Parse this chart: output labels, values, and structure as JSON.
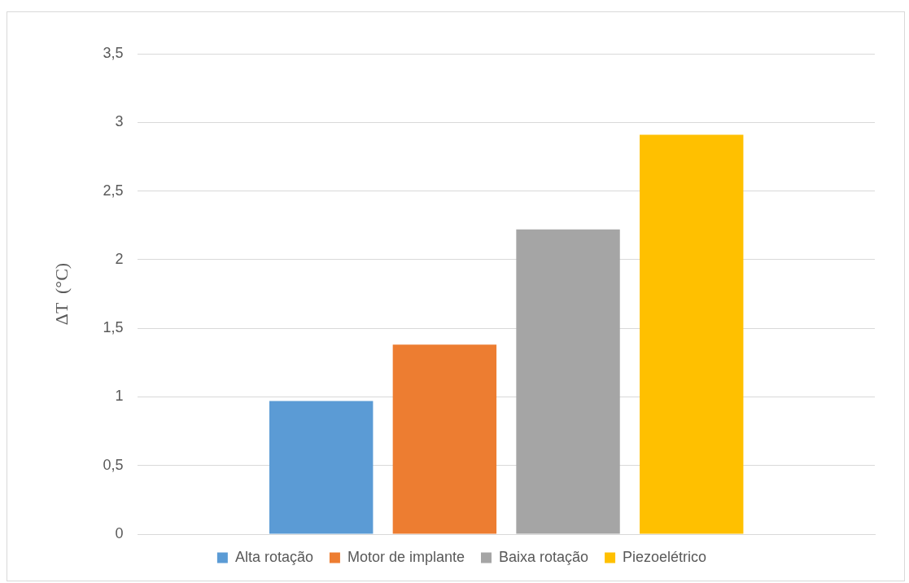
{
  "chart_data": {
    "type": "bar",
    "ylabel": "ΔT  (°C)",
    "categories": [
      null
    ],
    "series": [
      {
        "name": "Alta rotação",
        "color": "#5b9bd5",
        "values": [
          0.97
        ]
      },
      {
        "name": "Motor de implante",
        "color": "#ed7d31",
        "values": [
          1.38
        ]
      },
      {
        "name": "Baixa rotação",
        "color": "#a5a5a5",
        "values": [
          2.22
        ]
      },
      {
        "name": "Piezoelétrico",
        "color": "#ffc000",
        "values": [
          2.91
        ]
      }
    ],
    "ylim": [
      0,
      3.5
    ],
    "yticks": [
      0,
      {
        "value": 0.5,
        "label": "0,5"
      },
      1,
      {
        "value": 1.5,
        "label": "1,5"
      },
      2,
      {
        "value": 2.5,
        "label": "2,5"
      },
      3,
      {
        "value": 3.5,
        "label": "3,5"
      }
    ],
    "grid": "y",
    "legend": "bottom"
  }
}
